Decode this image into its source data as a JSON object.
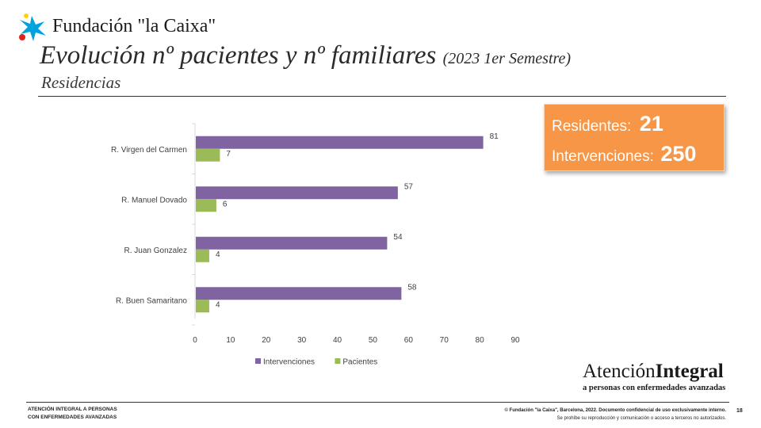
{
  "header": {
    "logo_text": "Fundación \"la Caixa\"",
    "title": "Evolución nº pacientes y nº familiares",
    "title_period": "(2023 1er Semestre)",
    "subtitle": "Residencias"
  },
  "kpi": {
    "residentes_label": "Residentes:",
    "residentes_value": "21",
    "intervenciones_label": "Intervenciones:",
    "intervenciones_value": "250"
  },
  "chart_data": {
    "type": "bar",
    "orientation": "horizontal",
    "categories": [
      "R.  Virgen del Carmen",
      "R.  Manuel Dovado",
      "R. Juan Gonzalez",
      "R. Buen Samaritano"
    ],
    "series": [
      {
        "name": "Intervenciones",
        "color": "#8064a2",
        "values": [
          81,
          57,
          54,
          58
        ]
      },
      {
        "name": "Pacientes",
        "color": "#9bbb59",
        "values": [
          7,
          6,
          4,
          4
        ]
      }
    ],
    "xlim": [
      0,
      90
    ],
    "xticks": [
      0,
      10,
      20,
      30,
      40,
      50,
      60,
      70,
      80,
      90
    ],
    "legend_position": "bottom"
  },
  "brand": {
    "name_part1": "Atención",
    "name_part2": "Integral",
    "tagline": "a personas con enfermedades avanzadas"
  },
  "footer": {
    "left_line1": "ATENCIÓN INTEGRAL A PERSONAS",
    "left_line2": "CON ENFERMEDADES AVANZADAS",
    "right_line1": "© Fundación \"la Caixa\", Barcelona, 2022. Documento confidencial de uso exclusivamente interno.",
    "right_line2": "Se prohíbe su reproducción y comunicación o acceso a terceros no autorizados.",
    "page_number": "18"
  },
  "colors": {
    "kpi_background": "#f79646",
    "logo_blue": "#00a3e0",
    "logo_red": "#e2231a",
    "logo_yellow": "#ffd100"
  }
}
